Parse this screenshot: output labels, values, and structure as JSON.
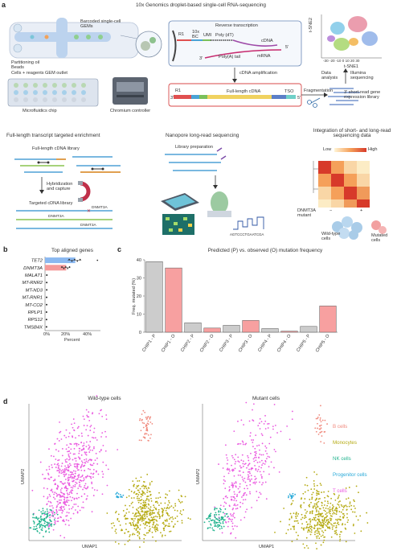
{
  "figure": {
    "panel_a": {
      "label": "a",
      "title": "10x Genomics droplet-based single-cell RNA-sequencing",
      "barcoded_gems": "Barcoded single-cell GEMs",
      "partitioning_oil": "Partitioning oil",
      "beads": "Beads",
      "cells_reagents": "Cells + reagents",
      "gem_outlet": "GEM outlet",
      "microfluidics_chip": "Microfluidics chip",
      "chromium_controller": "Chromium controller",
      "reverse_transcription": "Reverse transcription",
      "r1": "R1",
      "tenx_bc": "10x BC",
      "umi": "UMI",
      "poly_dt": "Poly (dT)",
      "cdna": "cDNA",
      "mrna": "mRNA",
      "poly_a_tail": "Poly(A) tail",
      "five_prime": "5'",
      "three_prime": "3'",
      "cdna_amplification": "cDNA amplification",
      "r1_b": "R1",
      "full_length_cdna": "Full-length cDNA",
      "tso": "TSO",
      "three_prime_b": "3'",
      "five_prime_b": "5'",
      "fragmentation": "Fragmentation",
      "data_analysis": "Data analysis",
      "illumina_sequencing": "Illumina sequencing",
      "short_read_library": "3' short-read gene expression library",
      "tsne1": "t-SNE1",
      "tsne2": "t-SNE2",
      "tsne_ticks": "-30 -20 -10 0 10 20 30",
      "full_length_title": "Full-length transcript targeted enrichment",
      "full_length_library": "Full-length cDNA library",
      "hybridization": "Hybridization and capture",
      "targeted_library": "Targeted cDNA library",
      "dnmt3a_1": "DNMT3A",
      "dnmt3a_2": "DNMT3A",
      "dnmt3a_3": "DNMT3A",
      "nanopore_title": "Nanopore long-read sequencing",
      "library_prep": "Library preparation",
      "sequence_read": "AGTCCCTGAATCGA",
      "integration_title": "Integration of short- and long-read sequencing data",
      "low": "Low",
      "high": "High",
      "dnmt3a_mutant": "DNMT3A mutant",
      "minus": "−",
      "plus": "+",
      "wild_type_cells": "Wild-type cells",
      "mutated_cells": "Mutated cells"
    },
    "panel_b": {
      "label": "b",
      "title": "Top aligned genes",
      "xlabel": "Percent",
      "x_ticks": [
        "0%",
        "20%",
        "40%"
      ]
    },
    "panel_c": {
      "label": "c",
      "title": "Predicted (P) vs. observed (O) mutation frequency",
      "ylabel": "Freq. mutated (%)",
      "y_ticks": [
        "0",
        "10",
        "20",
        "30",
        "40"
      ]
    },
    "panel_d": {
      "label": "d",
      "wild_title": "Wild-type cells",
      "mutant_title": "Mutant cells",
      "xlabel_1": "UMAP1",
      "ylabel_1": "UMAP2",
      "xlabel_2": "UMAP1",
      "ylabel_2": "UMAP2"
    },
    "colors": {
      "b_cells": "#f08a7e",
      "monocytes": "#b5aa12",
      "nk_cells": "#21b38e",
      "progenitor": "#27a9d9",
      "t_cells": "#ea5ae0",
      "observed_bar": "#f7a0a0",
      "predicted_bar": "#cccccc",
      "tet2_bar": "#8ab8f0",
      "dnmt3a_bar": "#f49a9a"
    }
  },
  "chart_data": [
    {
      "type": "bar",
      "panel": "b",
      "title": "Top aligned genes",
      "xlabel": "Percent",
      "ylabel": "",
      "orientation": "horizontal",
      "categories": [
        "TET2",
        "DNMT3A",
        "MALAT1",
        "MT-RNR2",
        "MT-ND3",
        "MT-RNR1",
        "MT-CO2",
        "RPLP1",
        "RPS12",
        "TMSB4X"
      ],
      "values": [
        30,
        21,
        0.6,
        0.5,
        0.5,
        0.4,
        0.4,
        0.3,
        0.3,
        0.3
      ],
      "xlim": [
        0,
        55
      ]
    },
    {
      "type": "bar",
      "panel": "c",
      "title": "Predicted (P) vs. observed (O) mutation frequency",
      "xlabel": "",
      "ylabel": "Freq. mutated (%)",
      "categories": [
        "CHIP1 - P",
        "CHIP1 - O",
        "CHIP2 - P",
        "CHIP2 - O",
        "CHIP3 - P",
        "CHIP3 - O",
        "CHIP4 - P",
        "CHIP4 - O",
        "CHIP5 - P",
        "CHIP5 - O"
      ],
      "values": [
        39,
        35.5,
        5.2,
        2.3,
        3.8,
        6.5,
        2.0,
        0.6,
        3.2,
        14.5
      ],
      "ylim": [
        0,
        40
      ]
    },
    {
      "type": "scatter",
      "panel": "d",
      "legend": [
        "B cells",
        "Monocytes",
        "NK cells",
        "Progenitor cells",
        "T cells"
      ],
      "legend_placement": "right",
      "xlabel": "UMAP1",
      "ylabel": "UMAP2"
    }
  ]
}
